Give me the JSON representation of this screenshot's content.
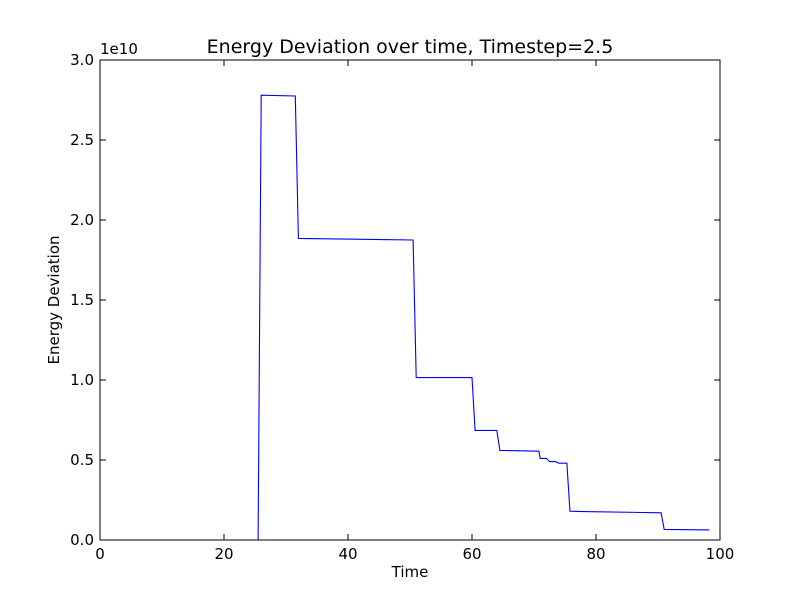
{
  "chart_data": {
    "type": "line",
    "title": "Energy Deviation over time, Timestep=2.5",
    "xlabel": "Time",
    "ylabel": "Energy Deviation",
    "offset_label": "1e10",
    "xlim": [
      0,
      100
    ],
    "ylim": [
      0,
      3.0
    ],
    "x_ticks": [
      "0",
      "20",
      "40",
      "60",
      "80",
      "100"
    ],
    "y_ticks": [
      "0.0",
      "0.5",
      "1.0",
      "1.5",
      "2.0",
      "2.5",
      "3.0"
    ],
    "grid": false,
    "legend": "none",
    "line_color": "#0000ff",
    "series": [
      {
        "x": [
          0,
          25,
          25.5,
          26,
          31.5,
          32,
          50.5,
          51,
          60,
          60.5,
          64,
          64.5,
          70.8,
          71,
          72,
          72.5,
          73.5,
          74,
          75.3,
          75.8,
          78,
          90.5,
          91,
          98.3
        ],
        "y": [
          0,
          0,
          0,
          2.78,
          2.775,
          1.885,
          1.875,
          1.015,
          1.015,
          0.685,
          0.685,
          0.56,
          0.555,
          0.51,
          0.51,
          0.49,
          0.49,
          0.48,
          0.48,
          0.18,
          0.178,
          0.17,
          0.066,
          0.063
        ]
      }
    ]
  }
}
